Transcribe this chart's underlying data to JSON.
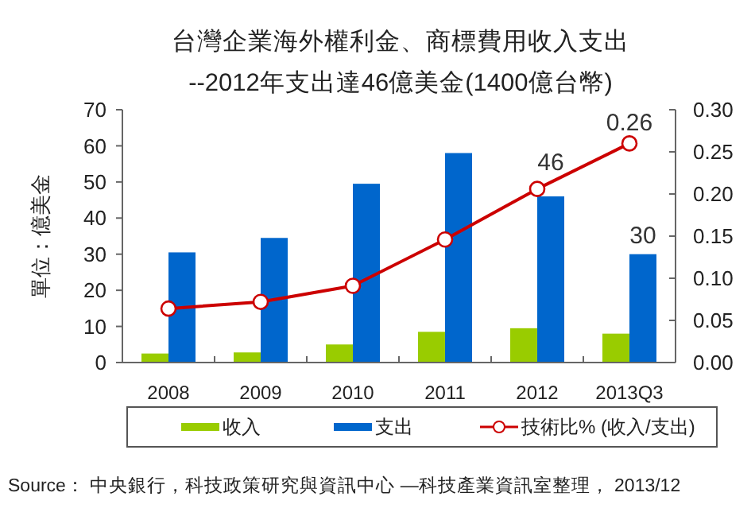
{
  "chart_data": {
    "type": "bar",
    "title": "台灣企業海外權利金、商標費用收入支出",
    "subtitle": "--2012年支出達46億美金(1400億台幣)",
    "ylabel": "單位：億美金",
    "categories": [
      "2008",
      "2009",
      "2010",
      "2011",
      "2012",
      "2013Q3"
    ],
    "series": [
      {
        "name": "收入",
        "color": "#99cc00",
        "values": [
          2.5,
          2.8,
          5,
          8.5,
          9.5,
          8
        ]
      },
      {
        "name": "支出",
        "color": "#0066cc",
        "values": [
          30.5,
          34.5,
          49.5,
          58,
          46,
          30
        ],
        "value_labels": [
          null,
          null,
          null,
          null,
          "46",
          "30"
        ]
      },
      {
        "name": "技術比% (收入/支出)",
        "type": "line",
        "axis": "y2",
        "color": "#cc0000",
        "marker": "circle",
        "values": [
          0.064,
          0.072,
          0.091,
          0.146,
          0.206,
          0.26
        ],
        "value_labels": [
          null,
          null,
          null,
          null,
          null,
          "0.26"
        ]
      }
    ],
    "ylim": [
      0,
      70
    ],
    "yticks": [
      0,
      10,
      20,
      30,
      40,
      50,
      60,
      70
    ],
    "y2lim": [
      0,
      0.3
    ],
    "y2ticks": [
      {
        "value": 0,
        "label": "0.00"
      },
      {
        "value": 0.05,
        "label": "0.05"
      },
      {
        "value": 0.1,
        "label": "0.10"
      },
      {
        "value": 0.15,
        "label": "0.15"
      },
      {
        "value": 0.2,
        "label": "0.20"
      },
      {
        "value": 0.25,
        "label": "0.25"
      },
      {
        "value": 0.3,
        "label": "0.30"
      }
    ],
    "legend": "bottom",
    "annotations": [
      "Source： 中央銀行，科技政策研究與資訊中心 —科技產業資訊室整理， 2013/12"
    ]
  }
}
